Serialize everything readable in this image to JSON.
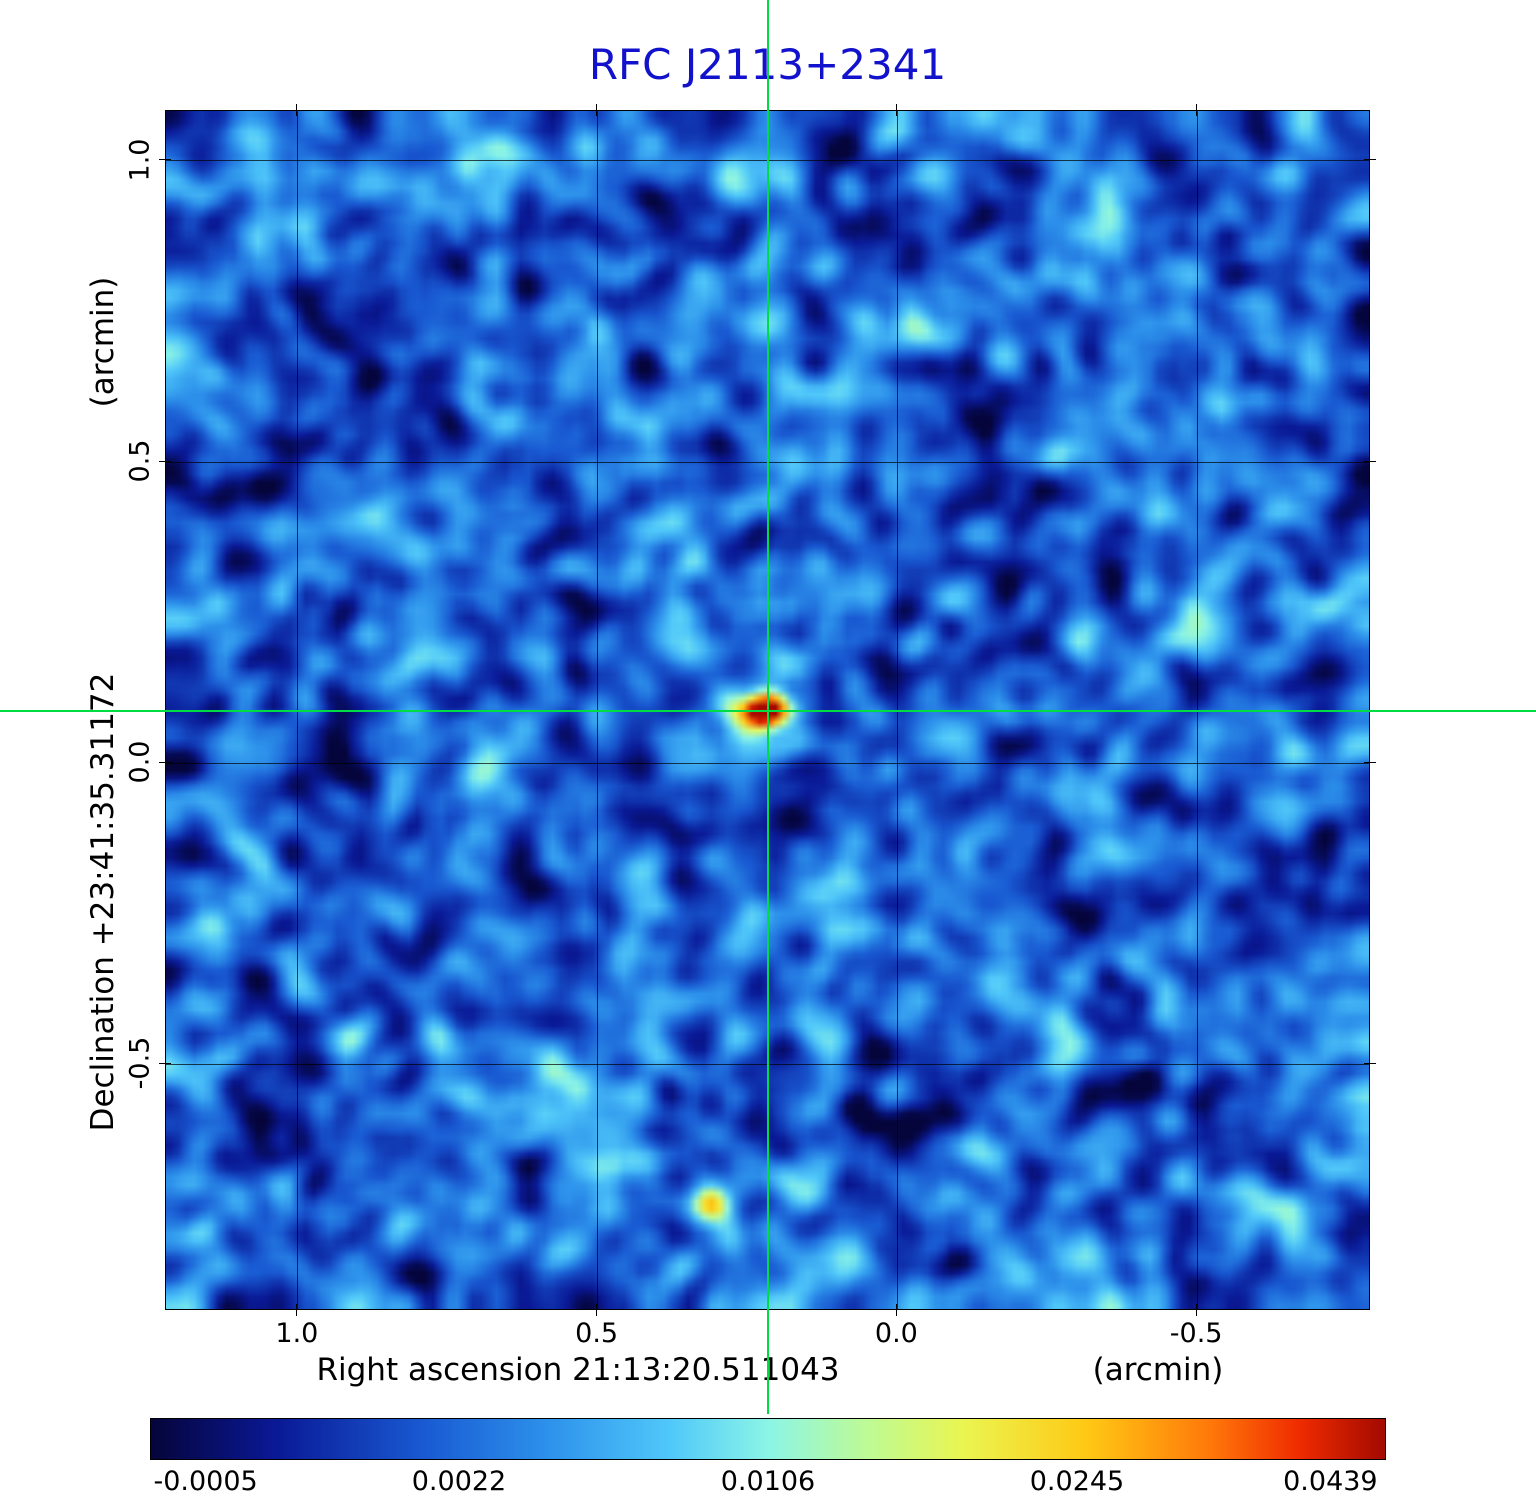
{
  "chart_data": {
    "type": "heatmap",
    "title": "RFC J2113+2341",
    "title_color": "#1212cc",
    "xlabel": "Right ascension  21:13:20.511043",
    "x_unit": "(arcmin)",
    "ylabel": "Declination  +23:41:35.31172",
    "y_unit": "(arcmin)",
    "x_range": [
      1.22,
      -0.79
    ],
    "y_range": [
      1.083,
      -0.91
    ],
    "x_ticks": [
      "1.0",
      "0.5",
      "0.0",
      "-0.5"
    ],
    "x_tick_values": [
      1.0,
      0.5,
      0.0,
      -0.5
    ],
    "y_ticks": [
      "1.0",
      "0.5",
      "0.0",
      "-0.5"
    ],
    "y_tick_values": [
      1.0,
      0.5,
      0.0,
      -0.5
    ],
    "grid": true,
    "crosshair": {
      "x": 0.215,
      "y": 0.085,
      "color": "#00dd44"
    },
    "sources": [
      {
        "name": "primary",
        "x": 0.215,
        "y": 0.085,
        "peak_jy": 0.0439,
        "amp": 0.95,
        "sigma_x_arcmin": 0.026,
        "sigma_y_arcmin": 0.02,
        "halo": {
          "amp": 0.09,
          "sigma_x_arcmin": 0.09,
          "sigma_y_arcmin": 0.018
        }
      },
      {
        "name": "secondary",
        "x": 0.311,
        "y": -0.735,
        "peak_jy": 0.012,
        "amp": 0.34,
        "sigma_x_arcmin": 0.022,
        "sigma_y_arcmin": 0.02
      }
    ],
    "background": {
      "noise_floor_jy": -0.0005,
      "character": "correlated blue noise"
    },
    "colorbar": {
      "tick_labels": [
        "-0.0005",
        "0.0022",
        "0.0106",
        "0.0245",
        "0.0439"
      ],
      "tick_positions": [
        0.045,
        0.25,
        0.5,
        0.75,
        0.955
      ],
      "colormap": "rainbow"
    }
  }
}
